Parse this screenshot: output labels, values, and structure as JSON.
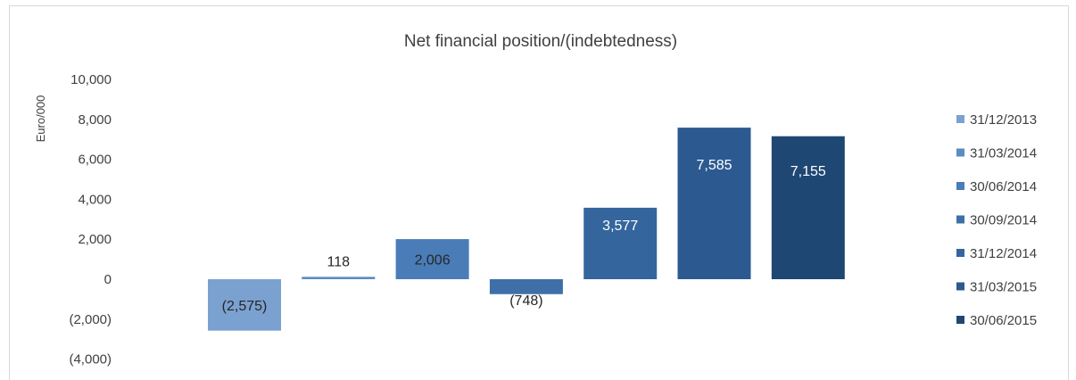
{
  "chart_data": {
    "type": "bar",
    "title": "Net financial position/(indebtedness)",
    "xlabel": "",
    "ylabel": "Euro/000",
    "ylim": [
      -4000,
      10000
    ],
    "yticks": [
      -4000,
      -2000,
      0,
      2000,
      4000,
      6000,
      8000,
      10000
    ],
    "ytick_labels": [
      "(4,000)",
      "(2,000)",
      "0",
      "2,000",
      "4,000",
      "6,000",
      "8,000",
      "10,000"
    ],
    "grid": false,
    "legend_position": "right",
    "series": [
      {
        "name": "31/12/2013",
        "value": -2575,
        "label": "(2,575)",
        "color": "#7ba1d1",
        "label_color": "#262626"
      },
      {
        "name": "31/03/2014",
        "value": 118,
        "label": "118",
        "color": "#5b8cc4",
        "label_color": "#262626"
      },
      {
        "name": "30/06/2014",
        "value": 2006,
        "label": "2,006",
        "color": "#4a7cb8",
        "label_color": "#262626"
      },
      {
        "name": "30/09/2014",
        "value": -748,
        "label": "(748)",
        "color": "#3f6fa8",
        "label_color": "#262626"
      },
      {
        "name": "31/12/2014",
        "value": 3577,
        "label": "3,577",
        "color": "#35659d",
        "label_color": "#ffffff"
      },
      {
        "name": "31/03/2015",
        "value": 7585,
        "label": "7,585",
        "color": "#2c5a90",
        "label_color": "#ffffff"
      },
      {
        "name": "30/06/2015",
        "value": 7155,
        "label": "7,155",
        "color": "#1f4774",
        "label_color": "#ffffff"
      }
    ]
  }
}
